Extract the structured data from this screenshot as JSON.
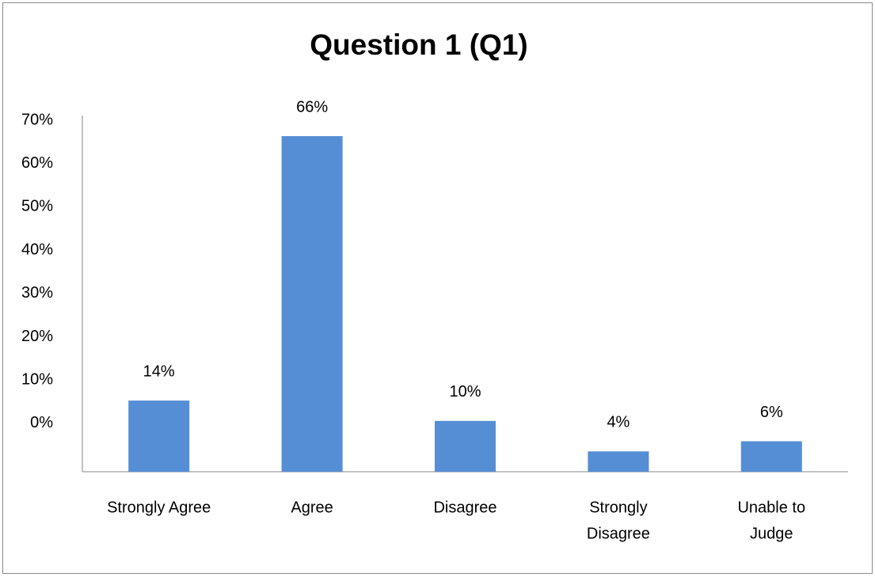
{
  "chart_data": {
    "type": "bar",
    "title": "Question 1 (Q1)",
    "categories": [
      "Strongly Agree",
      "Agree",
      "Disagree",
      "Strongly Disagree",
      "Unable to Judge"
    ],
    "category_lines": [
      [
        "Strongly Agree"
      ],
      [
        "Agree"
      ],
      [
        "Disagree"
      ],
      [
        "Strongly",
        "Disagree"
      ],
      [
        "Unable to",
        "Judge"
      ]
    ],
    "values": [
      14,
      66,
      10,
      4,
      6
    ],
    "data_labels": [
      "14%",
      "66%",
      "10%",
      "4%",
      "6%"
    ],
    "y_ticks": [
      "70%",
      "60%",
      "50%",
      "40%",
      "30%",
      "20%",
      "10%",
      "0%"
    ],
    "xlabel": "",
    "ylabel": "",
    "grid": false,
    "bar_color": "#558ED5"
  }
}
